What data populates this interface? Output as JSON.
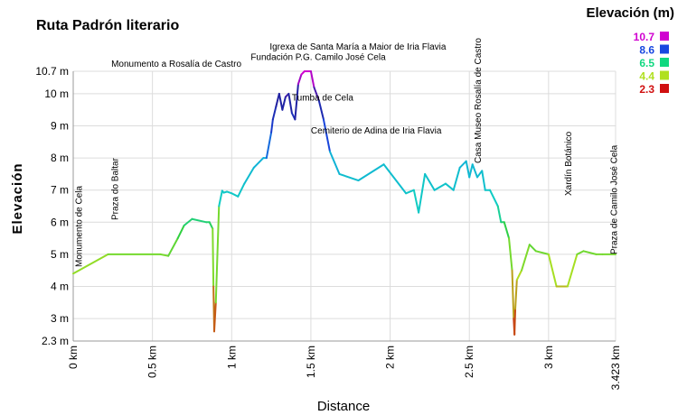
{
  "chart_data": {
    "type": "line",
    "title": "Ruta Padrón literario",
    "xlabel": "Distance",
    "ylabel": "Elevación",
    "xlim": [
      0,
      3.423
    ],
    "ylim": [
      2.3,
      10.7
    ],
    "grid": true,
    "x_ticks": [
      {
        "value": 0,
        "label": "0 km"
      },
      {
        "value": 0.5,
        "label": "0.5 km"
      },
      {
        "value": 1,
        "label": "1 km"
      },
      {
        "value": 1.5,
        "label": "1.5 km"
      },
      {
        "value": 2,
        "label": "2 km"
      },
      {
        "value": 2.5,
        "label": "2.5 km"
      },
      {
        "value": 3,
        "label": "3 km"
      },
      {
        "value": 3.423,
        "label": "3.423 km"
      }
    ],
    "y_ticks": [
      {
        "value": 2.3,
        "label": "2.3 m"
      },
      {
        "value": 3,
        "label": "3 m"
      },
      {
        "value": 4,
        "label": "4 m"
      },
      {
        "value": 5,
        "label": "5 m"
      },
      {
        "value": 6,
        "label": "6 m"
      },
      {
        "value": 7,
        "label": "7 m"
      },
      {
        "value": 8,
        "label": "8 m"
      },
      {
        "value": 9,
        "label": "9 m"
      },
      {
        "value": 10,
        "label": "10 m"
      },
      {
        "value": 10.7,
        "label": "10.7 m"
      }
    ],
    "legend": {
      "title": "Elevación (m)",
      "placement": "top-right",
      "entries": [
        {
          "label": "10.7",
          "color": "#d000d0"
        },
        {
          "label": "8.6",
          "color": "#1848e0"
        },
        {
          "label": "6.5",
          "color": "#10d880"
        },
        {
          "label": "4.4",
          "color": "#b0e020"
        },
        {
          "label": "2.3",
          "color": "#d01010"
        }
      ]
    },
    "color_scale": {
      "stops": [
        {
          "value": 2.3,
          "color": "#d01010"
        },
        {
          "value": 4.4,
          "color": "#b0e020"
        },
        {
          "value": 5.7,
          "color": "#30d040"
        },
        {
          "value": 6.5,
          "color": "#10d0c0"
        },
        {
          "value": 8.0,
          "color": "#10b0d8"
        },
        {
          "value": 8.6,
          "color": "#1848e0"
        },
        {
          "value": 9.8,
          "color": "#2020a0"
        },
        {
          "value": 10.7,
          "color": "#d000d0"
        }
      ]
    },
    "x": [
      0,
      0.22,
      0.55,
      0.6,
      0.66,
      0.7,
      0.75,
      0.84,
      0.86,
      0.88,
      0.885,
      0.89,
      0.9,
      0.92,
      0.94,
      0.95,
      0.97,
      1.0,
      1.04,
      1.08,
      1.14,
      1.2,
      1.22,
      1.25,
      1.26,
      1.28,
      1.3,
      1.32,
      1.34,
      1.36,
      1.38,
      1.4,
      1.42,
      1.44,
      1.46,
      1.48,
      1.5,
      1.52,
      1.55,
      1.58,
      1.62,
      1.68,
      1.8,
      1.96,
      2.1,
      2.15,
      2.18,
      2.22,
      2.28,
      2.35,
      2.4,
      2.44,
      2.48,
      2.5,
      2.52,
      2.55,
      2.58,
      2.6,
      2.63,
      2.68,
      2.7,
      2.72,
      2.75,
      2.77,
      2.78,
      2.785,
      2.79,
      2.8,
      2.83,
      2.88,
      2.92,
      3.0,
      3.05,
      3.08,
      3.12,
      3.18,
      3.22,
      3.3,
      3.34,
      3.423
    ],
    "y": [
      4.4,
      5.0,
      5.0,
      4.95,
      5.5,
      5.9,
      6.1,
      6.0,
      6.0,
      5.8,
      4.0,
      2.6,
      3.5,
      6.5,
      6.98,
      6.92,
      6.95,
      6.9,
      6.8,
      7.2,
      7.7,
      8.0,
      8.0,
      8.8,
      9.2,
      9.6,
      10.0,
      9.5,
      9.9,
      10.0,
      9.4,
      9.2,
      10.3,
      10.6,
      10.8,
      10.7,
      10.9,
      10.2,
      9.8,
      9.2,
      8.2,
      7.5,
      7.3,
      7.8,
      6.9,
      7.0,
      6.3,
      7.5,
      7.0,
      7.2,
      7.0,
      7.7,
      7.9,
      7.4,
      7.8,
      7.4,
      7.6,
      7.0,
      7.0,
      6.5,
      6.0,
      6.0,
      5.5,
      4.5,
      3.0,
      2.5,
      3.3,
      4.2,
      4.5,
      5.3,
      5.1,
      5.0,
      4.0,
      4.0,
      4.0,
      5.0,
      5.1,
      5.0,
      5.0,
      5.0
    ],
    "annotations": [
      {
        "label": "Monumento de Cela",
        "x": 0.03,
        "orientation": "vertical"
      },
      {
        "label": "Praza do Baltar",
        "x": 0.26,
        "orientation": "vertical"
      },
      {
        "label": "Monumento a Rosalía de Castro",
        "x": 0.24,
        "y": 10.92,
        "orientation": "horizontal"
      },
      {
        "label": "Igrexa de Santa María a Maior de Iria Flavia",
        "x": 1.24,
        "y": 11.46,
        "orientation": "horizontal"
      },
      {
        "label": "Fundación P.G. Camilo José Cela",
        "x": 1.12,
        "y": 11.14,
        "orientation": "horizontal"
      },
      {
        "label": "Tumba de Cela",
        "x": 1.38,
        "y": 9.87,
        "orientation": "horizontal"
      },
      {
        "label": "Cemiterio de Adina de Iria Flavia",
        "x": 1.5,
        "y": 8.85,
        "orientation": "horizontal"
      },
      {
        "label": "Casa Museo Rosalía de Castro",
        "x": 2.55,
        "orientation": "vertical"
      },
      {
        "label": "Xardín Botánico",
        "x": 3.12,
        "orientation": "vertical"
      },
      {
        "label": "Praza de Camilo José Cela",
        "x": 3.41,
        "orientation": "vertical"
      }
    ]
  }
}
